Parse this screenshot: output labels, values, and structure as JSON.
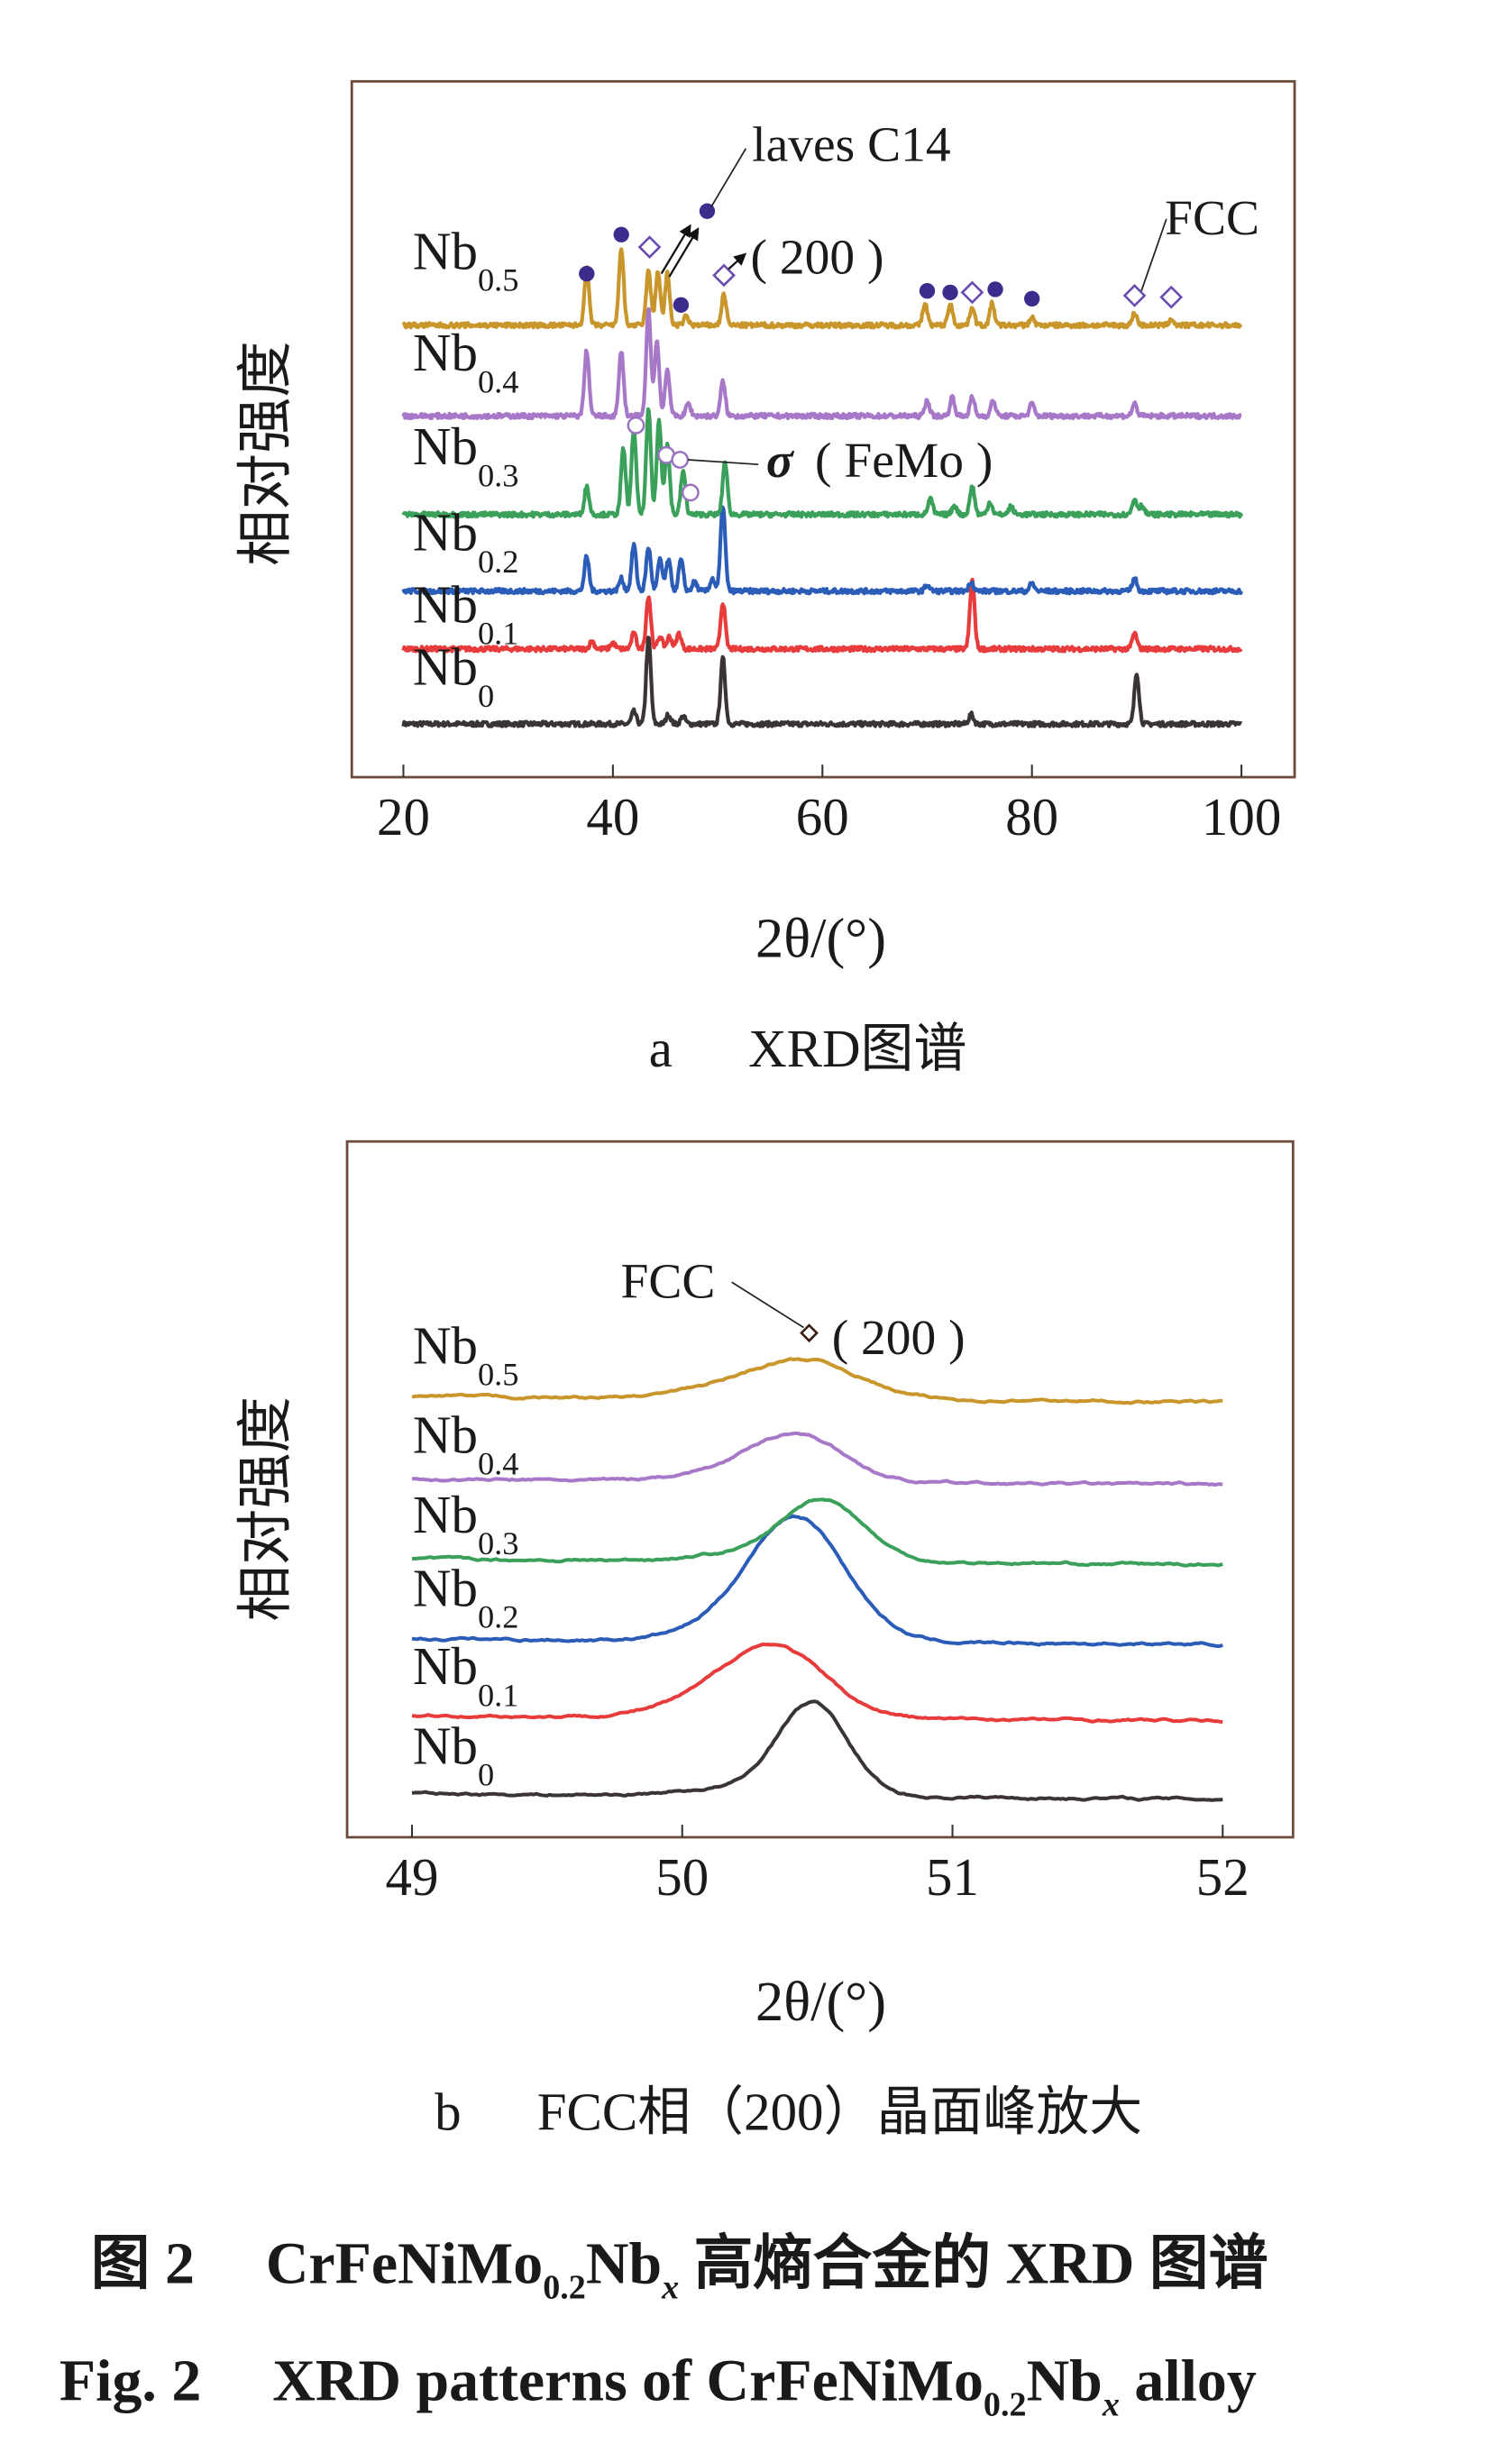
{
  "chart_data": [
    {
      "type": "line",
      "panel_caption_letter": "a",
      "panel_caption_text": "XRD图谱",
      "xlabel": "2θ/(°)",
      "ylabel": "相对强度",
      "xlim": [
        20,
        100
      ],
      "xticks": [
        "20",
        "40",
        "60",
        "80",
        "100"
      ],
      "grid": false,
      "stacked_offsets": true,
      "series": [
        {
          "name": "Nb",
          "sub": "0",
          "color": "#3a3434",
          "offset": 0,
          "peaks": [
            [
              42.0,
              8
            ],
            [
              43.4,
              55
            ],
            [
              45.3,
              6
            ],
            [
              46.7,
              5
            ],
            [
              50.5,
              42
            ],
            [
              74.2,
              6
            ],
            [
              90.0,
              33
            ]
          ]
        },
        {
          "name": "Nb",
          "sub": "0.1",
          "color": "#e83c3c",
          "offset": 48,
          "peaks": [
            [
              38.0,
              5
            ],
            [
              40.0,
              4
            ],
            [
              42.0,
              10
            ],
            [
              43.4,
              34
            ],
            [
              44.5,
              8
            ],
            [
              45.4,
              8
            ],
            [
              46.3,
              10
            ],
            [
              50.5,
              30
            ],
            [
              74.3,
              44
            ],
            [
              89.8,
              10
            ]
          ]
        },
        {
          "name": "Nb",
          "sub": "0.2",
          "color": "#2a5cb8",
          "offset": 85,
          "peaks": [
            [
              37.5,
              22
            ],
            [
              40.8,
              8
            ],
            [
              42.0,
              30
            ],
            [
              43.4,
              28
            ],
            [
              44.5,
              20
            ],
            [
              45.3,
              20
            ],
            [
              46.5,
              20
            ],
            [
              47.8,
              6
            ],
            [
              49.5,
              8
            ],
            [
              50.5,
              55
            ],
            [
              70.0,
              4
            ],
            [
              74.2,
              6
            ],
            [
              80.0,
              5
            ],
            [
              89.8,
              8
            ]
          ]
        },
        {
          "name": "Nb",
          "sub": "0.3",
          "color": "#3aa05a",
          "offset": 134,
          "peaks": [
            [
              37.5,
              18
            ],
            [
              41.0,
              42
            ],
            [
              42.0,
              55
            ],
            [
              43.4,
              67
            ],
            [
              44.4,
              60
            ],
            [
              45.2,
              45
            ],
            [
              46.7,
              28
            ],
            [
              50.7,
              34
            ],
            [
              70.3,
              10
            ],
            [
              72.6,
              6
            ],
            [
              74.3,
              18
            ],
            [
              76.0,
              8
            ],
            [
              78.0,
              5
            ],
            [
              89.8,
              10
            ],
            [
              90.5,
              6
            ]
          ]
        },
        {
          "name": "Nb",
          "sub": "0.4",
          "color": "#a878c8",
          "offset": 197,
          "peaks": [
            [
              37.5,
              42
            ],
            [
              40.8,
              42
            ],
            [
              43.4,
              68
            ],
            [
              44.2,
              48
            ],
            [
              45.2,
              30
            ],
            [
              47.2,
              8
            ],
            [
              50.5,
              22
            ],
            [
              70.0,
              10
            ],
            [
              72.4,
              12
            ],
            [
              74.3,
              12
            ],
            [
              76.3,
              10
            ],
            [
              80.0,
              8
            ],
            [
              89.8,
              8
            ]
          ]
        },
        {
          "name": "Nb",
          "sub": "0.5",
          "color": "#c8962a",
          "offset": 255,
          "peaks": [
            [
              37.5,
              36
            ],
            [
              40.8,
              50
            ],
            [
              43.4,
              35
            ],
            [
              44.3,
              35
            ],
            [
              45.2,
              33
            ],
            [
              47.0,
              6
            ],
            [
              50.6,
              20
            ],
            [
              69.8,
              14
            ],
            [
              72.2,
              14
            ],
            [
              74.3,
              12
            ],
            [
              76.2,
              14
            ],
            [
              80.0,
              5
            ],
            [
              89.8,
              8
            ],
            [
              93.3,
              4
            ]
          ]
        }
      ],
      "markers": {
        "laves_dot": {
          "color": "#3d2c8c",
          "points": [
            [
              37.5,
              288
            ],
            [
              40.8,
              313
            ],
            [
              46.5,
              268
            ],
            [
              49.0,
              328
            ],
            [
              70.0,
              277
            ],
            [
              72.2,
              276
            ],
            [
              76.5,
              278
            ],
            [
              80.0,
              272
            ]
          ]
        },
        "fcc_diamond": {
          "color": "#6a4cb0",
          "points": [
            [
              43.5,
              305
            ],
            [
              50.6,
              287
            ],
            [
              74.3,
              276
            ],
            [
              89.8,
              274
            ],
            [
              93.3,
              273
            ]
          ]
        },
        "sigma_circle": {
          "color": "#9a70c0",
          "points": [
            [
              42.2,
              191
            ],
            [
              45.1,
              172
            ],
            [
              46.4,
              169
            ],
            [
              47.4,
              148
            ]
          ]
        }
      },
      "annotations": {
        "laves": "laves C14",
        "fcc200": "( 200 )",
        "fcc": "FCC",
        "sigma_symbol": "σ",
        "sigma_text": "( FeMo )"
      }
    },
    {
      "type": "line",
      "panel_caption_letter": "b",
      "panel_caption_text": "FCC相（200）晶面峰放大",
      "xlabel": "2θ/(°)",
      "ylabel": "相对强度",
      "xlim": [
        49,
        52
      ],
      "xticks": [
        "49",
        "50",
        "51",
        "52"
      ],
      "grid": false,
      "stacked_offsets": true,
      "series": [
        {
          "name": "Nb",
          "sub": "0",
          "color": "#3a3434",
          "offset": 0,
          "peak": [
            50.48,
            60,
            0.13
          ]
        },
        {
          "name": "Nb",
          "sub": "0.1",
          "color": "#e83c3c",
          "offset": 50,
          "peak": [
            50.33,
            47,
            0.19
          ]
        },
        {
          "name": "Nb",
          "sub": "0.2",
          "color": "#2a5cb8",
          "offset": 99,
          "peak": [
            50.42,
            80,
            0.18
          ]
        },
        {
          "name": "Nb",
          "sub": "0.3",
          "color": "#3aa05a",
          "offset": 150,
          "peak": [
            50.52,
            40,
            0.15
          ]
        },
        {
          "name": "Nb",
          "sub": "0.4",
          "color": "#a878c8",
          "offset": 201,
          "peak": [
            50.42,
            31,
            0.17
          ]
        },
        {
          "name": "Nb",
          "sub": "0.5",
          "color": "#c8962a",
          "offset": 254,
          "peak": [
            50.45,
            25,
            0.2
          ]
        }
      ],
      "annotations": {
        "fcc": "FCC",
        "fcc200": "( 200 )"
      }
    }
  ],
  "figure_caption": {
    "cn_label": "图 2",
    "cn_prefix": "CrFeNiMo",
    "cn_sub1": "0.2",
    "cn_nb": "Nb",
    "cn_subx": "x",
    "cn_suffix": " 高熵合金的 XRD 图谱",
    "en_label": "Fig.  2",
    "en_prefix": "XRD patterns of CrFeNiMo",
    "en_sub1": "0.2",
    "en_nb": "Nb",
    "en_subx": "x",
    "en_suffix": " alloy"
  }
}
